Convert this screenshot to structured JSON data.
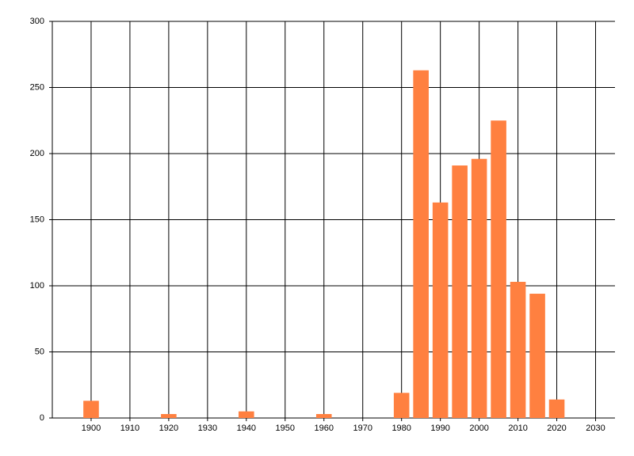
{
  "chart_data": {
    "type": "bar",
    "x": [
      1900,
      1920,
      1940,
      1960,
      1980,
      1985,
      1990,
      1995,
      2000,
      2005,
      2010,
      2015,
      2020
    ],
    "values": [
      13,
      3,
      5,
      3,
      19,
      263,
      163,
      191,
      196,
      225,
      103,
      94,
      14
    ],
    "color": "#ff8040",
    "xlim": [
      1890,
      2035
    ],
    "xticks": [
      1900,
      1910,
      1920,
      1930,
      1940,
      1950,
      1960,
      1970,
      1980,
      1990,
      2000,
      2010,
      2020,
      2030
    ],
    "ylim": [
      0,
      300
    ],
    "yticks": [
      0,
      50,
      100,
      150,
      200,
      250,
      300
    ],
    "grid": true
  }
}
